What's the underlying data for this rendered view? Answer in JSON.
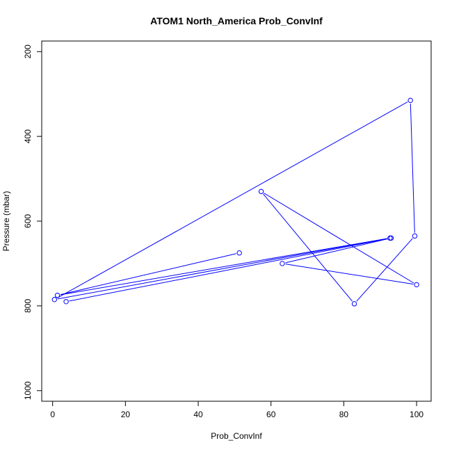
{
  "chart_data": {
    "type": "line",
    "title": "ATOM1 North_America Prob_ConvInf",
    "xlabel": "Prob_ConvInf",
    "ylabel": "Pressure (mbar)",
    "xlim": [
      -3,
      104
    ],
    "ylim": [
      1025,
      175
    ],
    "y_reversed": true,
    "x_ticks": [
      0,
      20,
      40,
      60,
      80,
      100
    ],
    "y_ticks": [
      200,
      400,
      600,
      800,
      1000
    ],
    "grid": false,
    "line_color": "#0000ff",
    "series": [
      {
        "x": [
          51.3,
          1.3,
          92.7,
          0.5,
          98.3,
          99.5,
          82.9,
          57.3,
          100.0,
          63.1,
          93.0,
          3.7
        ],
        "y": [
          675,
          775,
          640,
          785,
          315,
          635,
          795,
          530,
          750,
          700,
          640,
          790
        ]
      }
    ]
  }
}
